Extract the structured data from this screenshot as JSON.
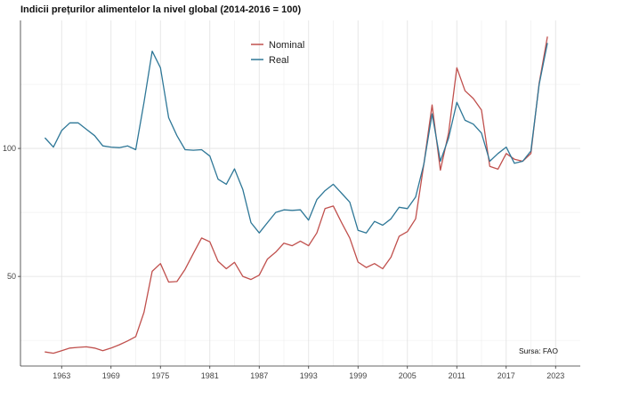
{
  "title": "Indicii prețurilor alimentelor la nivel global (2014-2016 = 100)",
  "source": "Sursa: FAO",
  "chart_data": {
    "type": "line",
    "title": "Indicii prețurilor alimentelor la nivel global (2014-2016 = 100)",
    "xlabel": "",
    "ylabel": "",
    "xlim": [
      1958,
      2026
    ],
    "ylim": [
      15,
      150
    ],
    "x_ticks": [
      1963,
      1969,
      1975,
      1981,
      1987,
      1993,
      1999,
      2005,
      2011,
      2017,
      2023
    ],
    "y_ticks": [
      50,
      100
    ],
    "grid": true,
    "legend_position": "top-center",
    "x": [
      1961,
      1962,
      1963,
      1964,
      1965,
      1966,
      1967,
      1968,
      1969,
      1970,
      1971,
      1972,
      1973,
      1974,
      1975,
      1976,
      1977,
      1978,
      1979,
      1980,
      1981,
      1982,
      1983,
      1984,
      1985,
      1986,
      1987,
      1988,
      1989,
      1990,
      1991,
      1992,
      1993,
      1994,
      1995,
      1996,
      1997,
      1998,
      1999,
      2000,
      2001,
      2002,
      2003,
      2004,
      2005,
      2006,
      2007,
      2008,
      2009,
      2010,
      2011,
      2012,
      2013,
      2014,
      2015,
      2016,
      2017,
      2018,
      2019,
      2020,
      2021,
      2022
    ],
    "series": [
      {
        "name": "Nominal",
        "color": "#c0504d",
        "values": [
          20.5,
          20.0,
          21.0,
          22.0,
          22.3,
          22.5,
          22.0,
          21.0,
          22.0,
          23.3,
          24.8,
          26.5,
          36.0,
          52.0,
          55.0,
          47.8,
          48.0,
          52.8,
          59.0,
          65.0,
          63.5,
          55.9,
          53.0,
          55.5,
          50.0,
          48.8,
          50.5,
          56.8,
          59.5,
          63.0,
          62.0,
          63.8,
          62.0,
          67.0,
          76.5,
          77.5,
          71.0,
          65.0,
          55.6,
          53.5,
          55.0,
          53.0,
          57.5,
          65.7,
          67.5,
          72.5,
          94.0,
          117.0,
          91.5,
          106.0,
          131.5,
          122.5,
          119.5,
          115.0,
          93.0,
          91.9,
          98.0,
          95.8,
          95.0,
          98.0,
          125.5,
          143.5
        ]
      },
      {
        "name": "Real",
        "color": "#2e7797",
        "values": [
          104.0,
          100.5,
          107.0,
          110.0,
          110.0,
          107.5,
          105.0,
          101.0,
          100.5,
          100.3,
          101.0,
          99.5,
          118.0,
          138.0,
          131.5,
          112.0,
          105.0,
          99.5,
          99.3,
          99.5,
          97.0,
          88.0,
          86.0,
          92.0,
          84.0,
          71.0,
          67.0,
          71.0,
          75.0,
          76.0,
          75.8,
          76.0,
          72.0,
          80.0,
          83.5,
          86.0,
          82.5,
          79.0,
          68.0,
          67.0,
          71.5,
          70.0,
          72.5,
          77.0,
          76.5,
          81.0,
          94.0,
          113.5,
          95.0,
          104.0,
          118.0,
          111.0,
          109.5,
          106.0,
          95.0,
          98.0,
          100.5,
          94.2,
          95.0,
          99.0,
          125.0,
          141.0
        ]
      }
    ]
  }
}
